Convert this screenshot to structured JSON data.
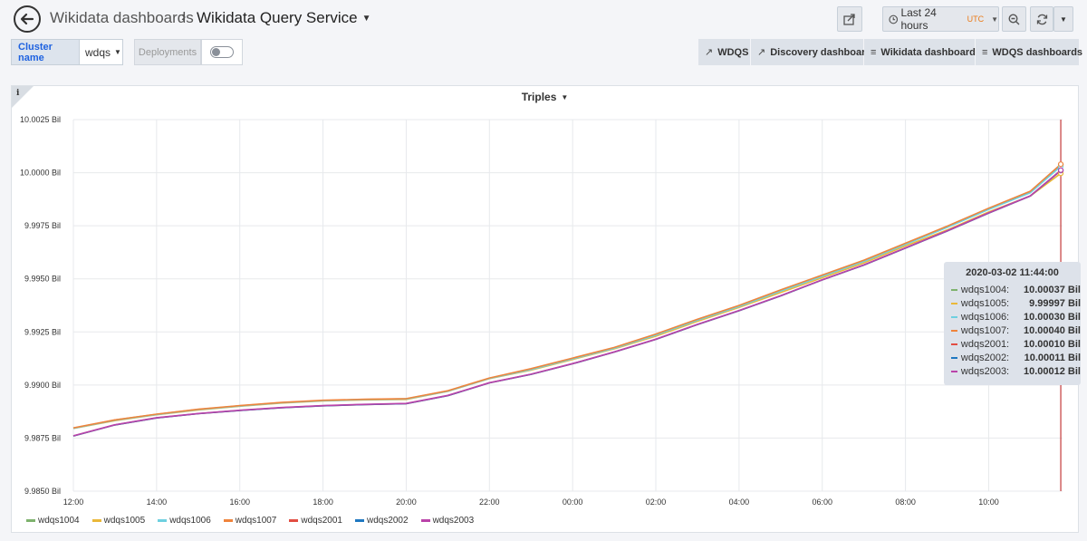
{
  "nav": {
    "breadcrumb_root": "Wikidata dashboards",
    "dashboard_title": "Wikidata Query Service",
    "time_range": "Last 24 hours",
    "timezone": "UTC"
  },
  "vars": {
    "cluster_label": "Cluster name",
    "cluster_value": "wdqs",
    "deployments_label": "Deployments"
  },
  "links": [
    {
      "label": "WDQS",
      "icon": "external-link-icon"
    },
    {
      "label": "Discovery dashboard",
      "icon": "external-link-icon"
    },
    {
      "label": "Wikidata dashboards",
      "icon": "bars-icon"
    },
    {
      "label": "WDQS dashboards",
      "icon": "bars-icon"
    }
  ],
  "panel": {
    "title": "Triples",
    "info": "i"
  },
  "chart_data": {
    "type": "line",
    "title": "Triples",
    "y_unit": "Bil",
    "y_ticks": [
      "9.9850 Bil",
      "9.9875 Bil",
      "9.9900 Bil",
      "9.9925 Bil",
      "9.9950 Bil",
      "9.9975 Bil",
      "10.0000 Bil",
      "10.0025 Bil"
    ],
    "ylim": [
      9.985,
      10.0025
    ],
    "x_ticks": [
      "12:00",
      "14:00",
      "16:00",
      "18:00",
      "20:00",
      "22:00",
      "00:00",
      "02:00",
      "04:00",
      "06:00",
      "08:00",
      "10:00"
    ],
    "x_hours": [
      0,
      1,
      2,
      3,
      4,
      5,
      6,
      7,
      8,
      9,
      10,
      11,
      12,
      13,
      14,
      15,
      16,
      17,
      18,
      19,
      20,
      21,
      22,
      23,
      23.733
    ],
    "grid": true,
    "legend_position": "bottom",
    "series": [
      {
        "name": "wdqs1004",
        "color": "#7eb26d",
        "values": [
          9.98797,
          9.98835,
          9.98862,
          9.98885,
          9.98902,
          9.98917,
          9.98927,
          9.98932,
          9.98935,
          9.98972,
          9.99032,
          9.99075,
          9.99125,
          9.99175,
          9.99237,
          9.99307,
          9.99372,
          9.99445,
          9.99515,
          9.99585,
          9.99665,
          9.99745,
          9.9983,
          9.9991,
          10.00037
        ]
      },
      {
        "name": "wdqs1005",
        "color": "#eab839",
        "values": [
          9.98795,
          9.98832,
          9.9886,
          9.98882,
          9.989,
          9.98915,
          9.98925,
          9.9893,
          9.98932,
          9.9897,
          9.9903,
          9.9907,
          9.9912,
          9.9917,
          9.9923,
          9.993,
          9.99365,
          9.99435,
          9.99505,
          9.99575,
          9.99655,
          9.9973,
          9.99815,
          9.9989,
          9.99997
        ]
      },
      {
        "name": "wdqs1006",
        "color": "#6ed0e0",
        "values": [
          9.98796,
          9.98834,
          9.98861,
          9.98884,
          9.98901,
          9.98916,
          9.98926,
          9.98931,
          9.98934,
          9.98971,
          9.99031,
          9.99073,
          9.99123,
          9.99173,
          9.99235,
          9.99305,
          9.9937,
          9.99442,
          9.99512,
          9.99582,
          9.99662,
          9.99742,
          9.99827,
          9.99905,
          10.0003
        ]
      },
      {
        "name": "wdqs1007",
        "color": "#ef843c",
        "values": [
          9.98798,
          9.98836,
          9.98863,
          9.98886,
          9.98903,
          9.98918,
          9.98928,
          9.98933,
          9.98936,
          9.98973,
          9.99033,
          9.99077,
          9.99127,
          9.99177,
          9.9924,
          9.9931,
          9.99375,
          9.99448,
          9.99518,
          9.99588,
          9.99668,
          9.99748,
          9.99833,
          9.99913,
          10.0004
        ]
      },
      {
        "name": "wdqs2001",
        "color": "#e24d42",
        "values": [
          9.9876,
          9.98812,
          9.98845,
          9.98865,
          9.9888,
          9.98893,
          9.98902,
          9.98908,
          9.98912,
          9.9895,
          9.9901,
          9.9905,
          9.991,
          9.99155,
          9.99215,
          9.99285,
          9.9935,
          9.9942,
          9.99495,
          9.99565,
          9.99645,
          9.99725,
          9.9981,
          9.9989,
          10.0001
        ]
      },
      {
        "name": "wdqs2002",
        "color": "#1f78c1",
        "values": [
          9.9876,
          9.98812,
          9.98845,
          9.98865,
          9.9888,
          9.98893,
          9.98902,
          9.98908,
          9.98912,
          9.9895,
          9.9901,
          9.9905,
          9.991,
          9.99155,
          9.99215,
          9.99285,
          9.9935,
          9.9942,
          9.99495,
          9.99565,
          9.99645,
          9.99725,
          9.9981,
          9.9989,
          10.00011
        ]
      },
      {
        "name": "wdqs2003",
        "color": "#ba43a9",
        "values": [
          9.98761,
          9.98813,
          9.98846,
          9.98866,
          9.98881,
          9.98894,
          9.98903,
          9.98909,
          9.98913,
          9.98951,
          9.99011,
          9.99051,
          9.99101,
          9.99156,
          9.99216,
          9.99286,
          9.99351,
          9.99421,
          9.99496,
          9.99566,
          9.99646,
          9.99726,
          9.99811,
          9.99891,
          10.00012
        ]
      }
    ]
  },
  "tooltip": {
    "time": "2020-03-02 11:44:00",
    "rows": [
      {
        "name": "wdqs1004:",
        "value": "10.00037 Bil",
        "color": "#7eb26d"
      },
      {
        "name": "wdqs1005:",
        "value": "9.99997 Bil",
        "color": "#eab839"
      },
      {
        "name": "wdqs1006:",
        "value": "10.00030 Bil",
        "color": "#6ed0e0"
      },
      {
        "name": "wdqs1007:",
        "value": "10.00040 Bil",
        "color": "#ef843c"
      },
      {
        "name": "wdqs2001:",
        "value": "10.00010 Bil",
        "color": "#e24d42"
      },
      {
        "name": "wdqs2002:",
        "value": "10.00011 Bil",
        "color": "#1f78c1"
      },
      {
        "name": "wdqs2003:",
        "value": "10.00012 Bil",
        "color": "#ba43a9"
      }
    ]
  }
}
